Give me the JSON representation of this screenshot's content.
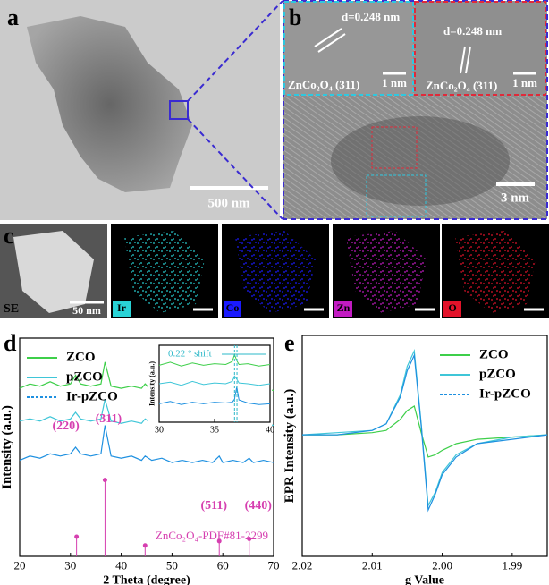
{
  "panels": {
    "a": {
      "label": "a",
      "scale_bar": "500 nm"
    },
    "b": {
      "label": "b",
      "scale_bar": "3 nm",
      "insets": [
        {
          "spacing": "d=0.248 nm",
          "phase": "ZnCo₂O₄ (311)",
          "scale_bar": "1 nm"
        },
        {
          "spacing": "d=0.248 nm",
          "phase": "ZnCo₂O₄ (311)",
          "scale_bar": "1 nm"
        }
      ]
    },
    "c": {
      "label": "c",
      "tiles": [
        {
          "label": "SE",
          "scale_bar": "50 nm"
        },
        {
          "label": "Ir",
          "color": "#29d3d6"
        },
        {
          "label": "Co",
          "color": "#1a1aff"
        },
        {
          "label": "Zn",
          "color": "#c21bc2"
        },
        {
          "label": "O",
          "color": "#e3132a"
        }
      ]
    }
  },
  "chart_data": [
    {
      "type": "line",
      "panel": "d",
      "x_label": "2 Theta (degree)",
      "y_label": "Intensity (a.u.)",
      "xlim": [
        20,
        70
      ],
      "xticks": [
        20,
        30,
        40,
        50,
        60,
        70
      ],
      "ylim": [
        0,
        10
      ],
      "legend": "upper left",
      "x": [
        20,
        22,
        24,
        26,
        28,
        30,
        31,
        32,
        34,
        36,
        36.8,
        38,
        40,
        42,
        44,
        44.7,
        46,
        48,
        50,
        52,
        54,
        56,
        58,
        59.3,
        60,
        62,
        64,
        65.2,
        66,
        68,
        70
      ],
      "series": [
        {
          "name": "ZCO",
          "color": "#3ecf4a",
          "values": [
            7.7,
            7.9,
            7.8,
            8.0,
            7.8,
            7.9,
            8.3,
            7.9,
            7.8,
            7.9,
            8.9,
            7.8,
            7.7,
            7.8,
            7.7,
            7.9,
            7.6,
            7.8,
            7.6,
            7.7,
            7.6,
            7.7,
            7.6,
            7.9,
            7.6,
            7.7,
            7.6,
            7.8,
            7.6,
            7.7,
            7.6
          ]
        },
        {
          "name": "pZCO",
          "color": "#3fc6d8",
          "values": [
            6.2,
            6.3,
            6.2,
            6.4,
            6.2,
            6.3,
            6.6,
            6.3,
            6.2,
            6.3,
            7.2,
            6.2,
            6.1,
            6.2,
            6.1,
            6.3,
            6.1,
            6.2,
            6.1,
            6.2,
            6.0,
            6.1,
            6.1,
            6.3,
            6.1,
            6.2,
            6.0,
            6.2,
            6.0,
            6.1,
            6.0
          ]
        },
        {
          "name": "Ir-pZCO",
          "color": "#1e90e0",
          "values": [
            4.4,
            4.6,
            4.5,
            4.7,
            4.6,
            4.7,
            5.0,
            4.7,
            4.6,
            4.7,
            6.0,
            4.6,
            4.5,
            4.6,
            4.4,
            4.6,
            4.4,
            4.5,
            4.3,
            4.4,
            4.3,
            4.4,
            4.3,
            4.6,
            4.3,
            4.4,
            4.3,
            4.5,
            4.3,
            4.4,
            4.3
          ]
        }
      ],
      "reference": {
        "name": "ZnCo₂O₄-PDF#81-2299",
        "color": "#d63fb0",
        "x": [
          31.2,
          36.8,
          44.7,
          59.3,
          65.2
        ],
        "values": [
          0.9,
          3.5,
          0.5,
          0.7,
          0.8
        ],
        "peak_labels": [
          "(220)",
          "(311)",
          null,
          "(511)",
          "(440)"
        ]
      },
      "inset": {
        "y_label": "Intensity (a.u.)",
        "xlim": [
          30,
          40
        ],
        "xticks": [
          30,
          35,
          40
        ],
        "ylim": [
          0,
          10
        ],
        "x": [
          30,
          31,
          32,
          33,
          34,
          35,
          36,
          36.6,
          36.8,
          37,
          37.2,
          38,
          39,
          40
        ],
        "series": [
          {
            "color": "#3ecf4a",
            "values": [
              7.4,
              7.8,
              7.3,
              7.7,
              7.4,
              7.6,
              7.5,
              7.9,
              8.8,
              8.0,
              7.5,
              7.6,
              7.3,
              7.5
            ]
          },
          {
            "color": "#3fc6d8",
            "values": [
              5.0,
              5.2,
              4.8,
              5.3,
              4.9,
              5.1,
              5.0,
              5.3,
              6.0,
              5.6,
              5.1,
              5.0,
              4.8,
              5.0
            ]
          },
          {
            "color": "#1e90e0",
            "values": [
              2.4,
              2.7,
              2.3,
              2.6,
              2.4,
              2.6,
              2.5,
              2.6,
              3.0,
              4.6,
              2.9,
              2.5,
              2.3,
              2.4
            ]
          }
        ],
        "shift_lines": [
          36.8,
          37.02
        ],
        "annotation": "0.22 ° shift"
      }
    },
    {
      "type": "line",
      "panel": "e",
      "x_label": "g Value",
      "y_label": "EPR Intensity (a.u.)",
      "xlim": [
        2.02,
        1.985
      ],
      "xticks": [
        2.02,
        2.01,
        {
          "value": 2,
          "label": "2.00"
        },
        1.99
      ],
      "ylim": [
        0,
        10
      ],
      "legend": "upper right",
      "x": [
        2.02,
        2.015,
        2.01,
        2.008,
        2.006,
        2.005,
        2.004,
        2.003,
        2.002,
        2.001,
        2.0,
        1.998,
        1.995,
        1.99,
        1.985
      ],
      "series": [
        {
          "name": "ZCO",
          "color": "#3ecf4a",
          "values": [
            5.5,
            5.5,
            5.6,
            5.7,
            6.2,
            6.6,
            6.8,
            5.6,
            4.5,
            4.6,
            4.8,
            5.1,
            5.3,
            5.4,
            5.5
          ]
        },
        {
          "name": "pZCO",
          "color": "#3fc6d8",
          "values": [
            5.5,
            5.6,
            5.7,
            6.0,
            7.3,
            8.6,
            9.3,
            6.0,
            2.3,
            2.9,
            3.8,
            4.6,
            5.1,
            5.4,
            5.5
          ]
        },
        {
          "name": "Ir-pZCO",
          "color": "#1e90e0",
          "values": [
            5.5,
            5.5,
            5.7,
            6.0,
            7.2,
            8.4,
            9.1,
            5.9,
            2.1,
            2.8,
            3.7,
            4.5,
            5.1,
            5.3,
            5.5
          ]
        }
      ]
    }
  ]
}
